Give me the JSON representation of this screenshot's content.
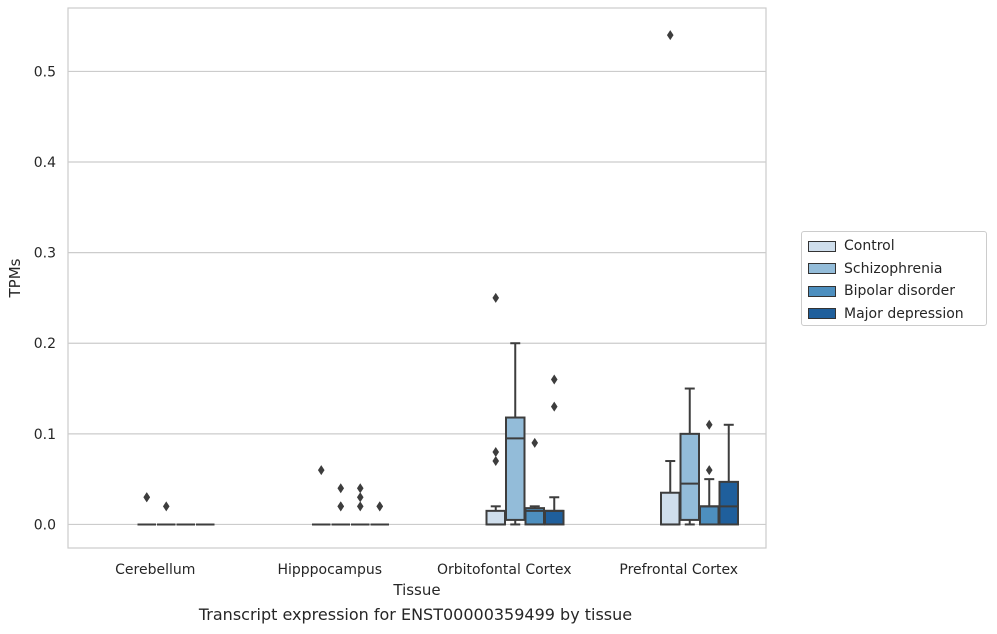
{
  "chart_data": {
    "type": "box",
    "caption": "Transcript expression for ENST00000359499 by tissue",
    "xlabel": "Tissue",
    "ylabel": "TPMs",
    "ylim": [
      -0.026,
      0.57
    ],
    "yticks": [
      0.0,
      0.1,
      0.2,
      0.3,
      0.4,
      0.5
    ],
    "ytick_labels": [
      "0.0",
      "0.1",
      "0.2",
      "0.3",
      "0.4",
      "0.5"
    ],
    "grid": "horizontal",
    "legend_position": "right",
    "categories": [
      "Cerebellum",
      "Hipppocampus",
      "Orbitofontal Cortex",
      "Prefrontal Cortex"
    ],
    "series": [
      {
        "name": "Control",
        "color": "#cfdeec"
      },
      {
        "name": "Schizophrenia",
        "color": "#93bcd9"
      },
      {
        "name": "Bipolar disorder",
        "color": "#4d8fbf"
      },
      {
        "name": "Major depression",
        "color": "#1f5f9c"
      }
    ],
    "boxes": [
      {
        "category": "Cerebellum",
        "series": "Control",
        "min": 0,
        "q1": 0,
        "median": 0,
        "q3": 0,
        "max": 0,
        "outliers": [
          0.03,
          0.03
        ]
      },
      {
        "category": "Cerebellum",
        "series": "Schizophrenia",
        "min": 0,
        "q1": 0,
        "median": 0,
        "q3": 0,
        "max": 0,
        "outliers": [
          0.02
        ]
      },
      {
        "category": "Cerebellum",
        "series": "Bipolar disorder",
        "min": 0,
        "q1": 0,
        "median": 0,
        "q3": 0,
        "max": 0,
        "outliers": []
      },
      {
        "category": "Cerebellum",
        "series": "Major depression",
        "min": 0,
        "q1": 0,
        "median": 0,
        "q3": 0,
        "max": 0,
        "outliers": []
      },
      {
        "category": "Hipppocampus",
        "series": "Control",
        "min": 0,
        "q1": 0,
        "median": 0,
        "q3": 0,
        "max": 0,
        "outliers": [
          0.06
        ]
      },
      {
        "category": "Hipppocampus",
        "series": "Schizophrenia",
        "min": 0,
        "q1": 0,
        "median": 0,
        "q3": 0,
        "max": 0,
        "outliers": [
          0.04,
          0.02,
          0.02
        ]
      },
      {
        "category": "Hipppocampus",
        "series": "Bipolar disorder",
        "min": 0,
        "q1": 0,
        "median": 0,
        "q3": 0,
        "max": 0,
        "outliers": [
          0.04,
          0.03,
          0.02
        ]
      },
      {
        "category": "Hipppocampus",
        "series": "Major depression",
        "min": 0,
        "q1": 0,
        "median": 0,
        "q3": 0,
        "max": 0,
        "outliers": [
          0.02,
          0.02
        ]
      },
      {
        "category": "Orbitofontal Cortex",
        "series": "Control",
        "min": 0,
        "q1": 0,
        "median": 0,
        "q3": 0.015,
        "max": 0.02,
        "outliers": [
          0.08,
          0.07,
          0.25
        ]
      },
      {
        "category": "Orbitofontal Cortex",
        "series": "Schizophrenia",
        "min": 0,
        "q1": 0.005,
        "median": 0.095,
        "q3": 0.118,
        "max": 0.2,
        "outliers": []
      },
      {
        "category": "Orbitofontal Cortex",
        "series": "Bipolar disorder",
        "min": 0,
        "q1": 0,
        "median": 0.015,
        "q3": 0.018,
        "max": 0.02,
        "outliers": [
          0.09
        ]
      },
      {
        "category": "Orbitofontal Cortex",
        "series": "Major depression",
        "min": 0,
        "q1": 0,
        "median": 0.015,
        "q3": 0.015,
        "max": 0.03,
        "outliers": [
          0.16,
          0.13
        ]
      },
      {
        "category": "Prefrontal Cortex",
        "series": "Control",
        "min": 0,
        "q1": 0,
        "median": 0,
        "q3": 0.035,
        "max": 0.07,
        "outliers": [
          0.54
        ]
      },
      {
        "category": "Prefrontal Cortex",
        "series": "Schizophrenia",
        "min": 0,
        "q1": 0.005,
        "median": 0.045,
        "q3": 0.1,
        "max": 0.15,
        "outliers": []
      },
      {
        "category": "Prefrontal Cortex",
        "series": "Bipolar disorder",
        "min": 0,
        "q1": 0,
        "median": 0.02,
        "q3": 0.02,
        "max": 0.05,
        "outliers": [
          0.11,
          0.06
        ]
      },
      {
        "category": "Prefrontal Cortex",
        "series": "Major depression",
        "min": 0,
        "q1": 0,
        "median": 0.02,
        "q3": 0.047,
        "max": 0.11,
        "outliers": []
      }
    ]
  }
}
